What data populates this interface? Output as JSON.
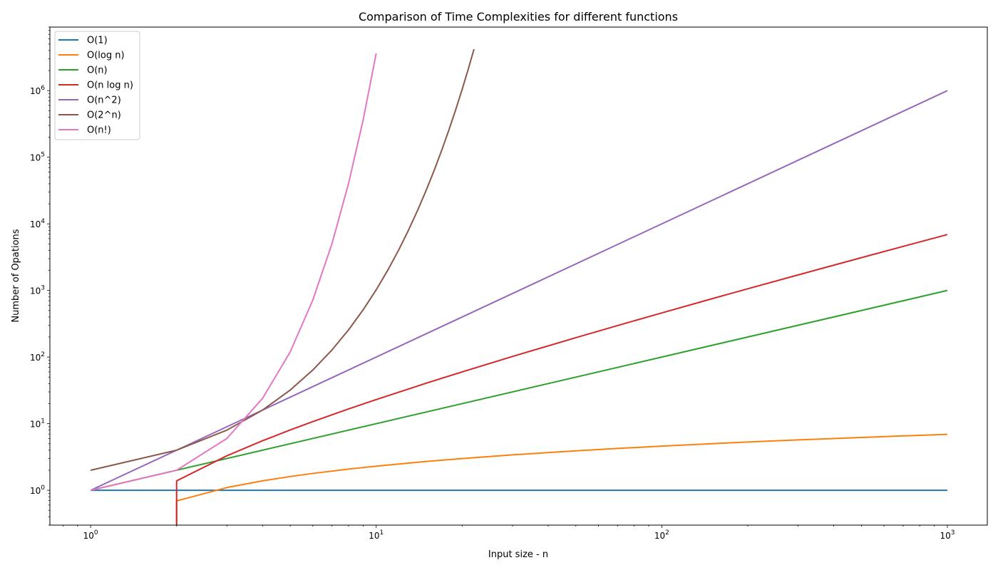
{
  "chart_data": {
    "type": "line",
    "title": "Comparison of Time Complexities for different functions",
    "xlabel": "Input size - n",
    "ylabel": "Number of Opations",
    "xscale": "log",
    "yscale": "log",
    "xlim": [
      0.72,
      1380
    ],
    "ylim": [
      0.3,
      9000000
    ],
    "grid": false,
    "legend_position": "top-left",
    "x_ticks": [
      {
        "value": 1,
        "label": "10^0"
      },
      {
        "value": 10,
        "label": "10^1"
      },
      {
        "value": 100,
        "label": "10^2"
      },
      {
        "value": 1000,
        "label": "10^3"
      }
    ],
    "y_ticks": [
      {
        "value": 1,
        "label": "10^0"
      },
      {
        "value": 10,
        "label": "10^1"
      },
      {
        "value": 100,
        "label": "10^2"
      },
      {
        "value": 1000,
        "label": "10^3"
      },
      {
        "value": 10000,
        "label": "10^4"
      },
      {
        "value": 100000,
        "label": "10^5"
      },
      {
        "value": 1000000,
        "label": "10^6"
      }
    ],
    "series": [
      {
        "name": "O(1)",
        "color": "#1f77b4",
        "x": [
          1,
          1000
        ],
        "y": [
          1,
          1
        ]
      },
      {
        "name": "O(log n)",
        "color": "#ff7f0e",
        "x": [
          2,
          2,
          3,
          4,
          5,
          6,
          8,
          10,
          15,
          20,
          30,
          50,
          70,
          100,
          150,
          200,
          300,
          500,
          700,
          1000
        ],
        "y": [
          0.3,
          0.693,
          1.099,
          1.386,
          1.609,
          1.792,
          2.079,
          2.303,
          2.708,
          2.996,
          3.401,
          3.912,
          4.248,
          4.605,
          5.011,
          5.298,
          5.704,
          6.215,
          6.551,
          6.908
        ]
      },
      {
        "name": "O(n)",
        "color": "#2ca02c",
        "x": [
          1,
          1000
        ],
        "y": [
          1,
          1000
        ]
      },
      {
        "name": "O(n log n)",
        "color": "#d62728",
        "x": [
          2,
          2,
          3,
          4,
          5,
          6,
          8,
          10,
          15,
          20,
          30,
          50,
          70,
          100,
          150,
          200,
          300,
          500,
          700,
          1000
        ],
        "y": [
          0.3,
          1.386,
          3.296,
          5.545,
          8.047,
          10.75,
          16.64,
          23.03,
          40.62,
          59.91,
          102.0,
          195.6,
          297.4,
          460.5,
          751.6,
          1059.7,
          1711.1,
          3107.3,
          4585.9,
          6907.8
        ]
      },
      {
        "name": "O(n^2)",
        "color": "#9467bd",
        "x": [
          1,
          1000
        ],
        "y": [
          1,
          1000000
        ]
      },
      {
        "name": "O(2^n)",
        "color": "#8c564b",
        "x": [
          1,
          2,
          3,
          4,
          5,
          6,
          7,
          8,
          9,
          10,
          11,
          12,
          13,
          14,
          15,
          16,
          17,
          18,
          19,
          20,
          21,
          22
        ],
        "y": [
          2,
          4,
          8,
          16,
          32,
          64,
          128,
          256,
          512,
          1024,
          2048,
          4096,
          8192,
          16384,
          32768,
          65536,
          131072,
          262144,
          524288,
          1048576,
          2097152,
          4194304
        ]
      },
      {
        "name": "O(n!)",
        "color": "#e377c2",
        "x": [
          1,
          2,
          3,
          4,
          5,
          6,
          7,
          8,
          9,
          10
        ],
        "y": [
          1,
          2,
          6,
          24,
          120,
          720,
          5040,
          40320,
          362880,
          3628800
        ]
      }
    ]
  }
}
